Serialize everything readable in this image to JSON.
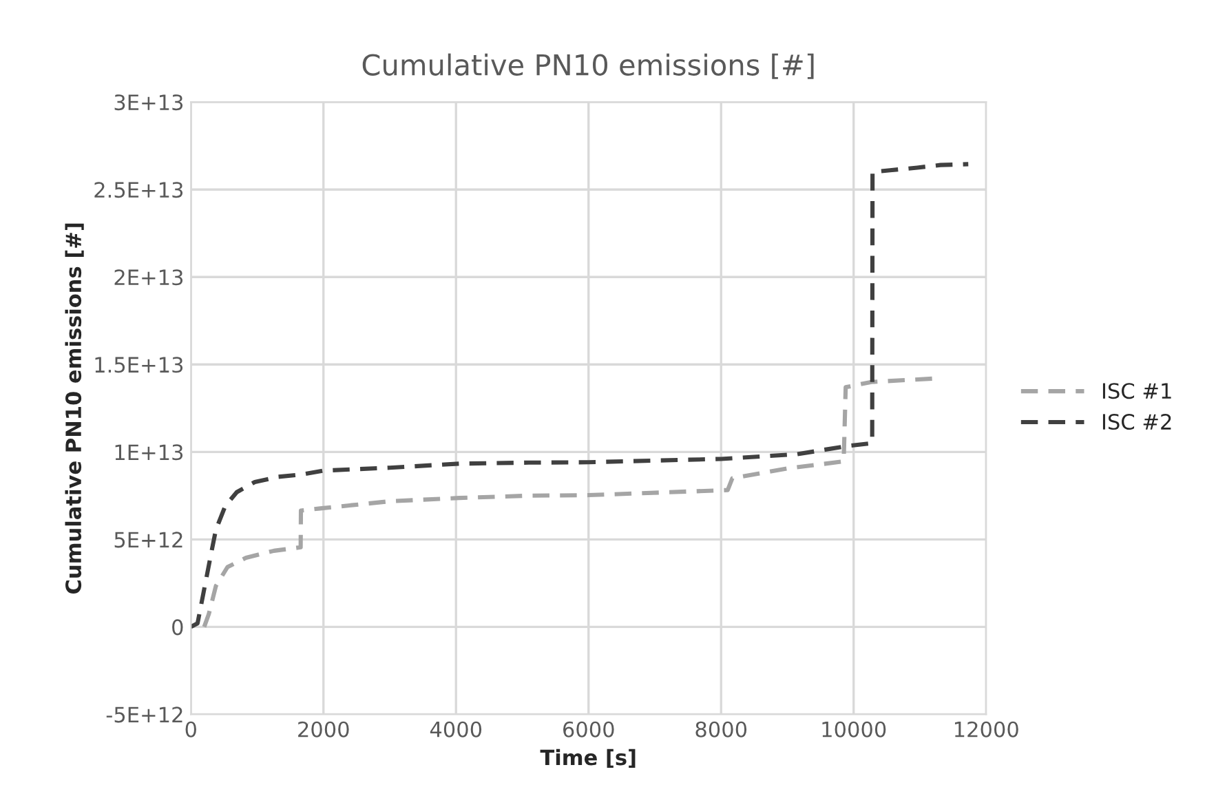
{
  "chart_data": {
    "type": "line",
    "title": "Cumulative PN10 emissions [#]",
    "xlabel": "Time [s]",
    "ylabel": "Cumulative PN10 emissions [#]",
    "xlim": [
      0,
      12000
    ],
    "xticks": [
      0,
      2000,
      4000,
      6000,
      8000,
      10000,
      12000
    ],
    "ylim": [
      -5000000000000.0,
      30000000000000.0
    ],
    "yticks": [
      {
        "value": -5000000000000.0,
        "label": "-5E+12"
      },
      {
        "value": 0,
        "label": "0"
      },
      {
        "value": 5000000000000.0,
        "label": "5E+12"
      },
      {
        "value": 10000000000000.0,
        "label": "1E+13"
      },
      {
        "value": 15000000000000.0,
        "label": "1.5E+13"
      },
      {
        "value": 20000000000000.0,
        "label": "2E+13"
      },
      {
        "value": 25000000000000.0,
        "label": "2.5E+13"
      },
      {
        "value": 30000000000000.0,
        "label": "3E+13"
      }
    ],
    "grid": true,
    "legend": "right",
    "line_style": "dashed",
    "marker": "none",
    "series": [
      {
        "name": "ISC #1",
        "color": "#a5a5a5",
        "x": [
          200,
          270,
          377,
          552,
          832,
          1252,
          1656,
          1660,
          1950,
          3000,
          4050,
          5100,
          6000,
          8100,
          8170,
          9010,
          9850,
          9880,
          10270,
          11240
        ],
        "values": [
          0,
          730000000000.0,
          2340000000000.0,
          3420000000000.0,
          3950000000000.0,
          4350000000000.0,
          4550000000000.0,
          6650000000000.0,
          6770000000000.0,
          7180000000000.0,
          7370000000000.0,
          7500000000000.0,
          7530000000000.0,
          7820000000000.0,
          8500000000000.0,
          9060000000000.0,
          9460000000000.0,
          13700000000000.0,
          14000000000000.0,
          14200000000000.0
        ]
      },
      {
        "name": "ISC #2",
        "color": "#404040",
        "x": [
          0,
          100,
          308,
          377,
          517,
          692,
          965,
          1320,
          1670,
          2000,
          3000,
          4050,
          5100,
          6000,
          8000,
          9150,
          9920,
          10280,
          10285,
          10550,
          10960,
          11310,
          11730
        ],
        "values": [
          0,
          200000000000.0,
          4250000000000.0,
          5560000000000.0,
          6900000000000.0,
          7700000000000.0,
          8280000000000.0,
          8580000000000.0,
          8710000000000.0,
          8930000000000.0,
          9100000000000.0,
          9330000000000.0,
          9390000000000.0,
          9410000000000.0,
          9600000000000.0,
          9870000000000.0,
          10350000000000.0,
          10500000000000.0,
          26000000000000.0,
          26100000000000.0,
          26250000000000.0,
          26400000000000.0,
          26450000000000.0
        ]
      }
    ]
  }
}
